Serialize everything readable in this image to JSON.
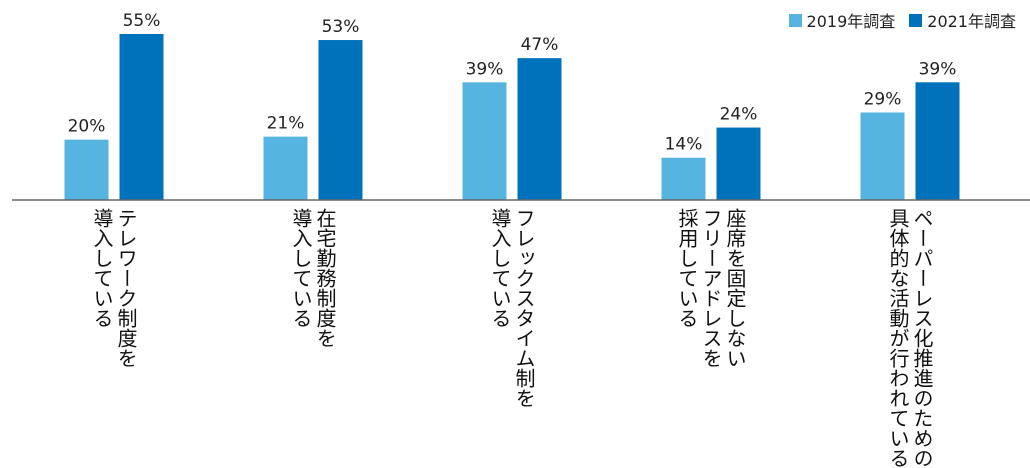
{
  "chart_data": {
    "type": "bar",
    "categories": [
      [
        "テレワーク制度を",
        "導入している"
      ],
      [
        "在宅勤務制度を",
        "導入している"
      ],
      [
        "フレックスタイム制を",
        "導入している"
      ],
      [
        "座席を固定しない",
        "フリーアドレスを",
        "採用している"
      ],
      [
        "ペーパーレス化推進のための",
        "具体的な活動が行われている"
      ]
    ],
    "series": [
      {
        "name": "2019年調査",
        "color": "#56b4e0",
        "values": [
          20,
          21,
          39,
          14,
          29
        ]
      },
      {
        "name": "2021年調査",
        "color": "#0072bc",
        "values": [
          55,
          53,
          47,
          24,
          39
        ]
      }
    ],
    "value_suffix": "%",
    "ylim": [
      0,
      55
    ],
    "legend_position": "top-right",
    "grid": false
  }
}
